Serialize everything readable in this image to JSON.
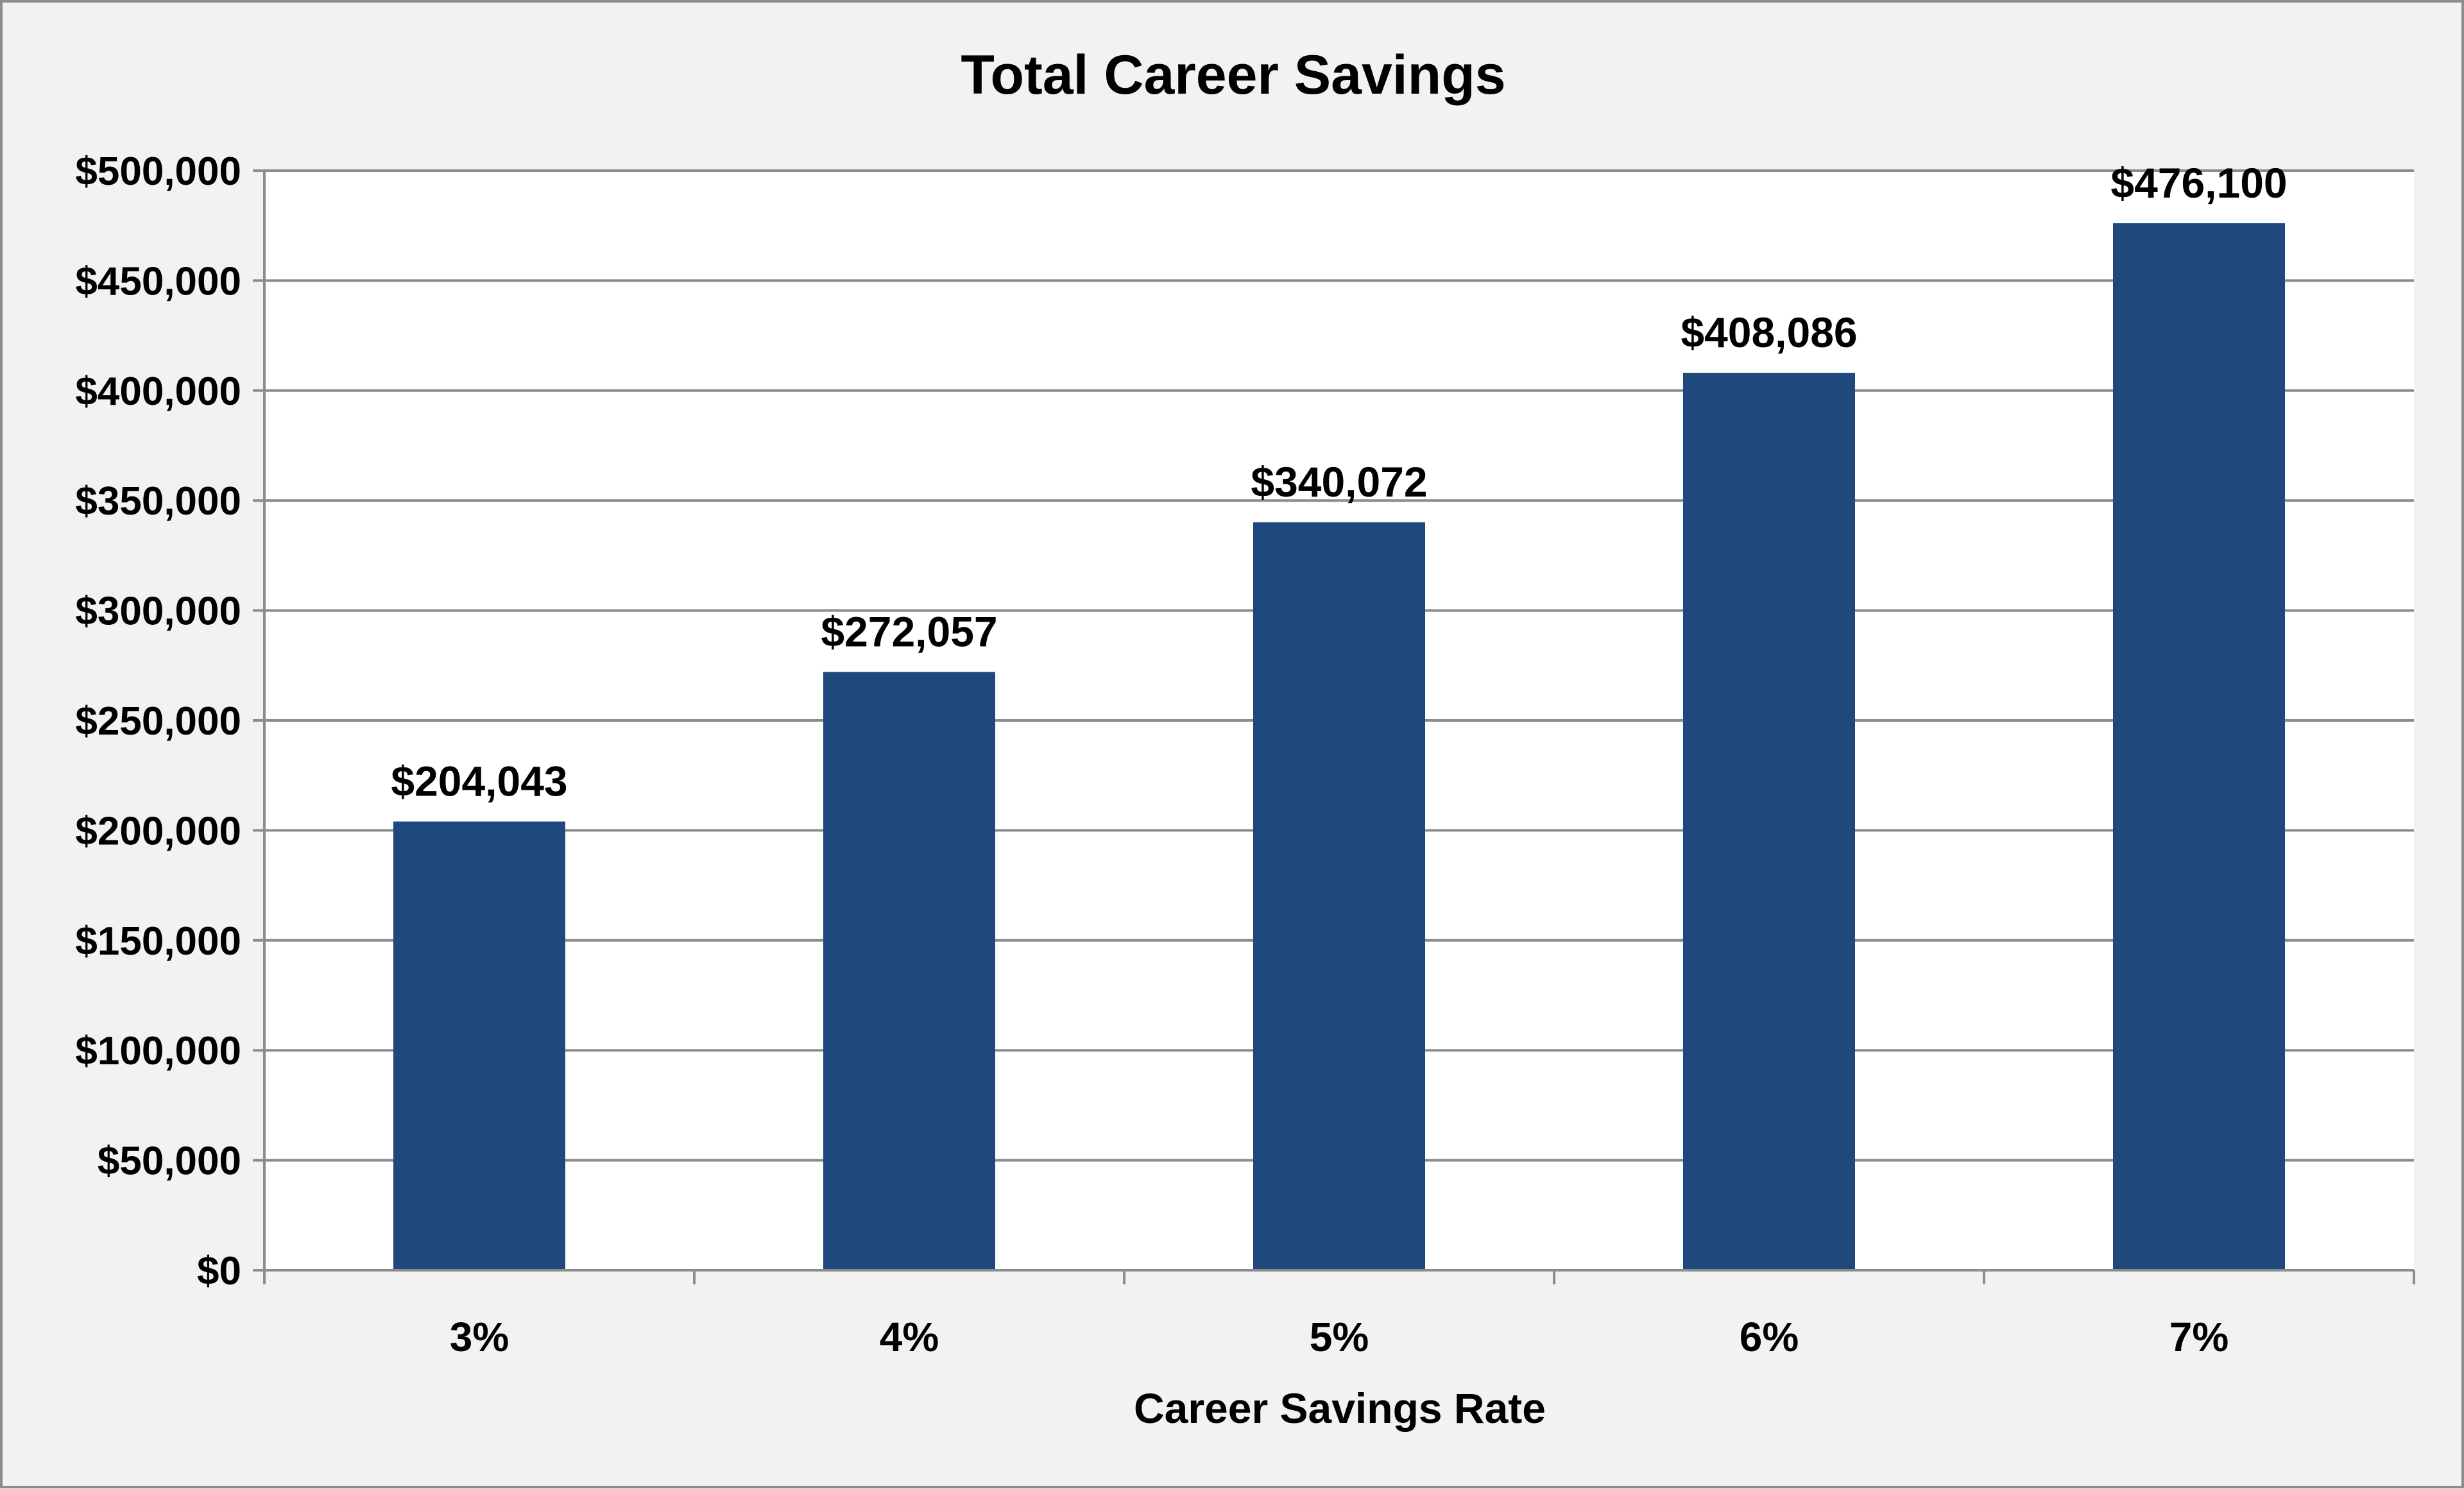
{
  "chart_data": {
    "type": "bar",
    "title": "Total Career Savings",
    "xlabel": "Career Savings Rate",
    "ylabel": "",
    "categories": [
      "3%",
      "4%",
      "5%",
      "6%",
      "7%"
    ],
    "values": [
      204043,
      272057,
      340072,
      408086,
      476100
    ],
    "data_labels": [
      "$204,043",
      "$272,057",
      "$340,072",
      "$408,086",
      "$476,100"
    ],
    "ylim": [
      0,
      500000
    ],
    "yticks": [
      0,
      50000,
      100000,
      150000,
      200000,
      250000,
      300000,
      350000,
      400000,
      450000,
      500000
    ],
    "ytick_labels": [
      "$0",
      "$50,000",
      "$100,000",
      "$150,000",
      "$200,000",
      "$250,000",
      "$300,000",
      "$350,000",
      "$400,000",
      "$450,000",
      "$500,000"
    ],
    "grid": true,
    "legend": "none",
    "colors": {
      "bar": "#1f497d",
      "plot_background": "#ffffff",
      "page_background": "#f2f2f2",
      "grid": "#8c8c8c"
    }
  }
}
